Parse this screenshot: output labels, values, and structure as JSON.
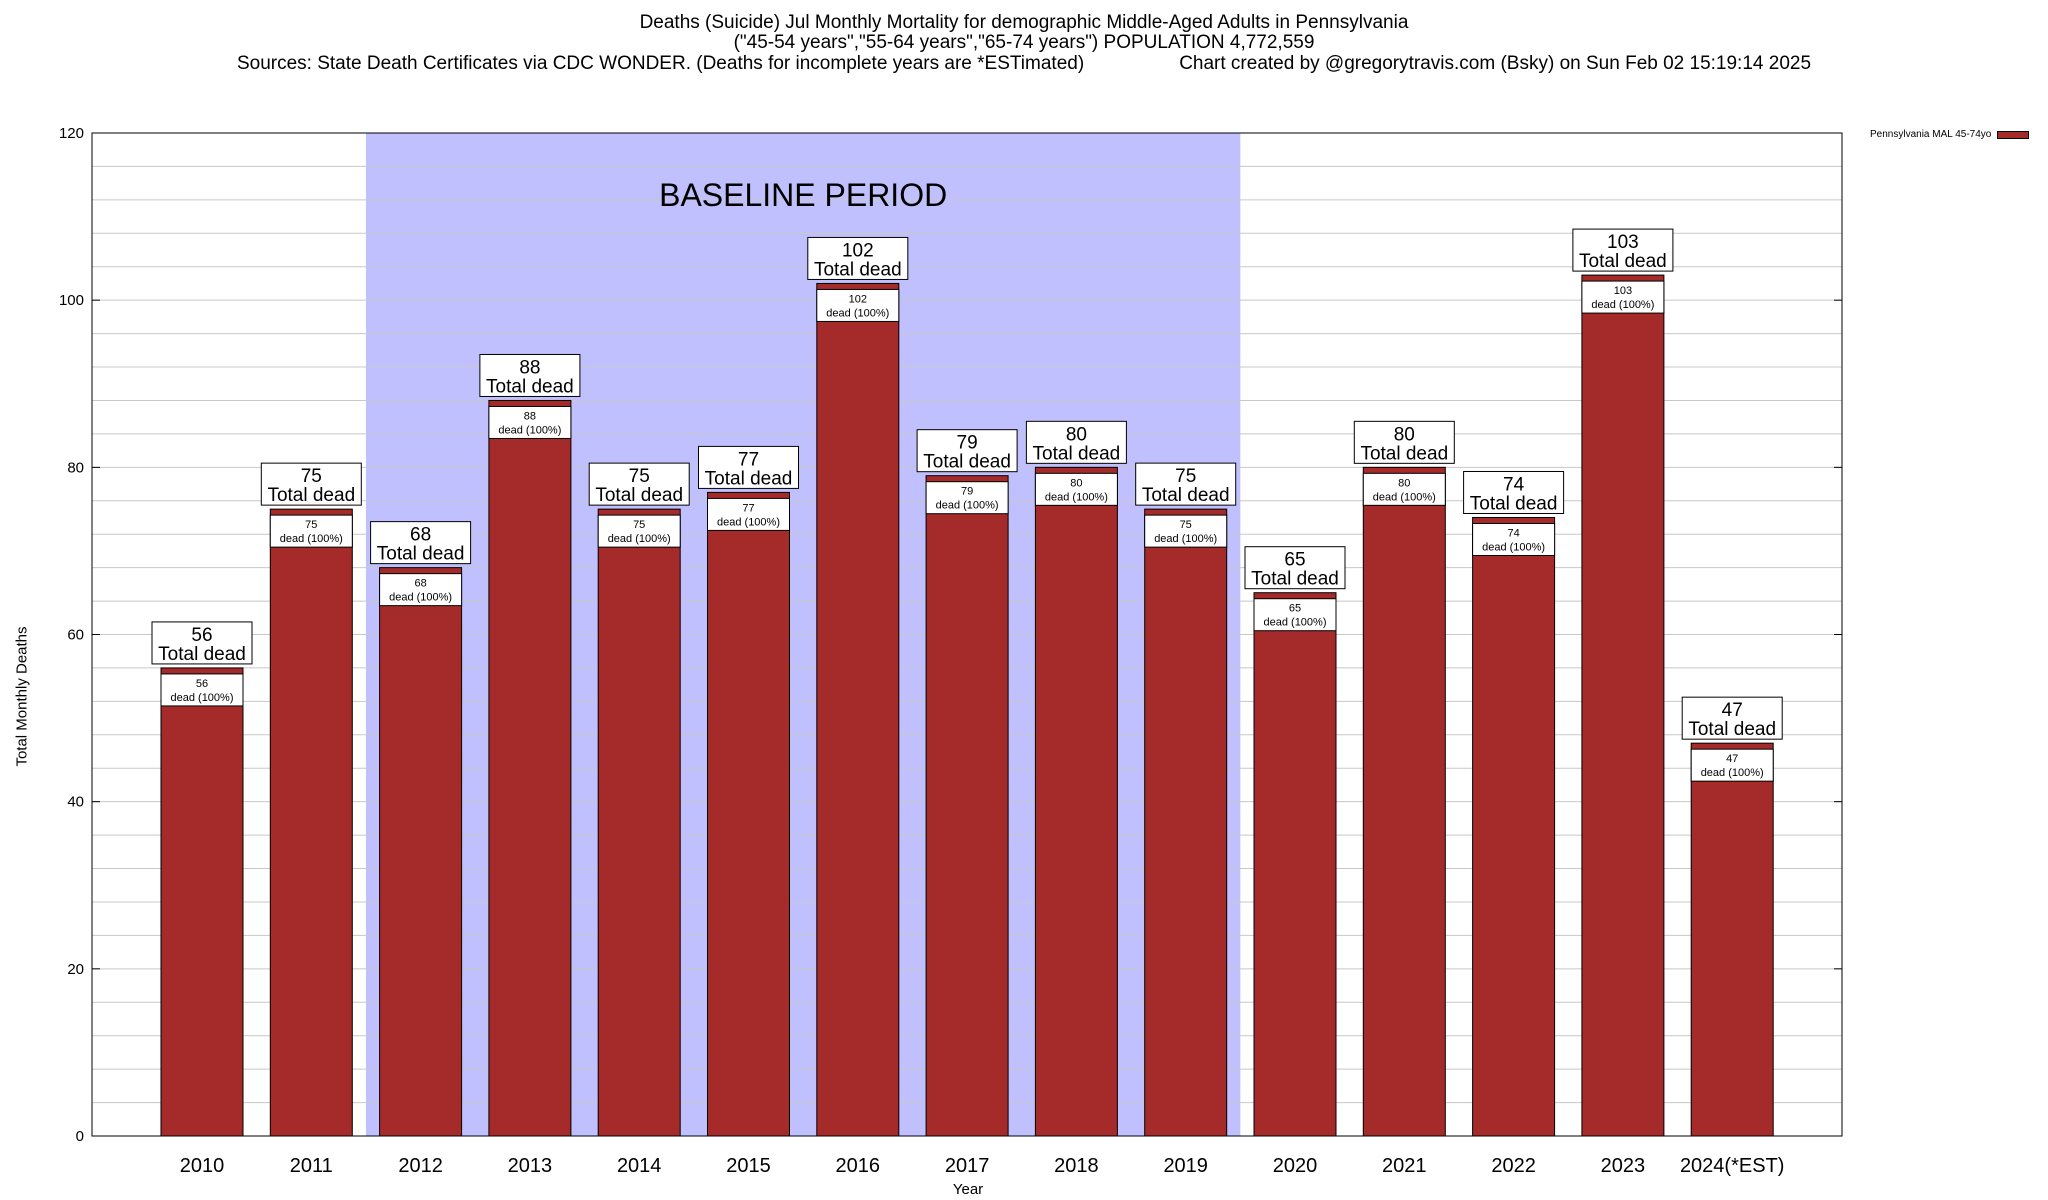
{
  "header": {
    "title": "Deaths (Suicide) Jul Monthly Mortality for demographic Middle-Aged Adults in Pennsylvania",
    "subtitle": "(\"45-54 years\",\"55-64 years\",\"65-74 years\") POPULATION 4,772,559",
    "sources": "Sources: State Death Certificates via CDC WONDER. (Deaths for incomplete years are *ESTimated)",
    "credit": "Chart created by @gregorytravis.com (Bsky) on Sun Feb 02 15:19:14 2025"
  },
  "colors": {
    "bar": "#a52a2a",
    "baseline_band": "#c0c0ff",
    "grid": "#c8c8c8"
  },
  "chart_data": {
    "type": "bar",
    "categories": [
      "2010",
      "2011",
      "2012",
      "2013",
      "2014",
      "2015",
      "2016",
      "2017",
      "2018",
      "2019",
      "2020",
      "2021",
      "2022",
      "2023",
      "2024(*EST)"
    ],
    "series": [
      {
        "name": "Pennsylvania MAL 45-74yo",
        "values": [
          56,
          75,
          68,
          88,
          75,
          77,
          102,
          79,
          80,
          75,
          65,
          80,
          74,
          103,
          47
        ]
      }
    ],
    "ylim": [
      0,
      120
    ],
    "yticks": [
      0,
      20,
      40,
      60,
      80,
      100,
      120
    ],
    "xlabel": "Year",
    "ylabel": "Total Monthly Deaths",
    "grid": true,
    "legend_position": "top-right",
    "top_label_suffix": "Total dead",
    "inner_label_suffix": "dead (100%)",
    "baseline_period": {
      "label": "BASELINE PERIOD",
      "start": "2012",
      "end": "2019"
    }
  }
}
